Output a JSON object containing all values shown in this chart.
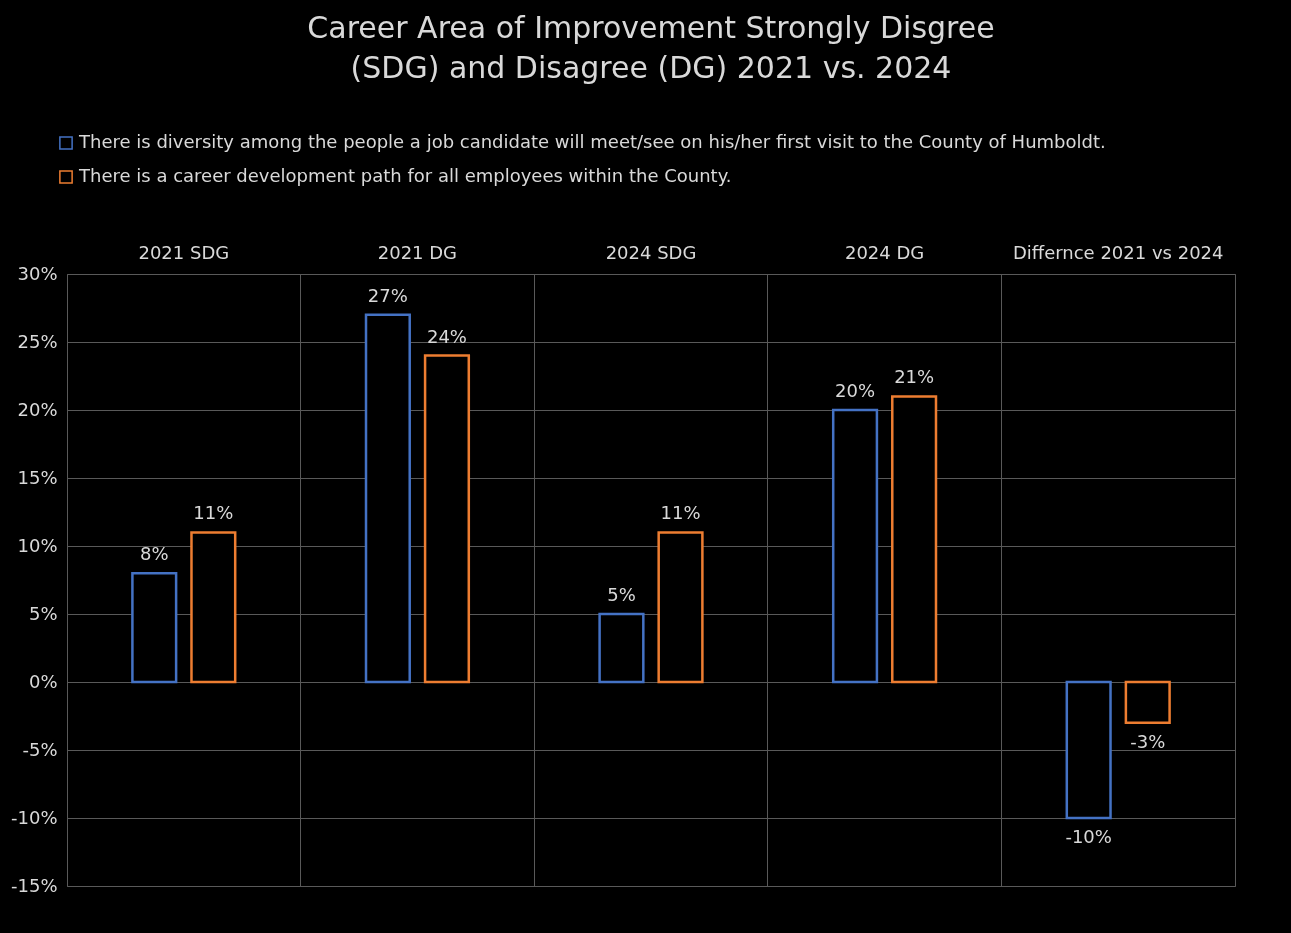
{
  "chart_data": {
    "type": "bar",
    "title": "Career  Area of Improvement  Strongly Disgree (SDG) and Disagree (DG) 2021 vs. 2024",
    "categories": [
      "2021 SDG",
      "2021 DG",
      "2024 SDG",
      "2024 DG",
      "Differnce 2021 vs 2024"
    ],
    "series": [
      {
        "name": "There is diversity among the people a job candidate will meet/see on his/her first visit to the County of Humboldt.",
        "color": "#4472c4",
        "values": [
          8,
          27,
          5,
          20,
          -10
        ],
        "value_labels": [
          "8%",
          "27%",
          "5%",
          "20%",
          "-10%"
        ]
      },
      {
        "name": "There is a career development path for all employees within the County.",
        "color": "#ed7d31",
        "values": [
          11,
          24,
          11,
          21,
          -3
        ],
        "value_labels": [
          "11%",
          "24%",
          "11%",
          "21%",
          "-3%"
        ]
      }
    ],
    "ylim": [
      -15,
      30
    ],
    "yticks": [
      {
        "value": -15,
        "label": "-15%"
      },
      {
        "value": -10,
        "label": "-10%"
      },
      {
        "value": -5,
        "label": "-5%"
      },
      {
        "value": 0,
        "label": "0%"
      },
      {
        "value": 5,
        "label": "5%"
      },
      {
        "value": 10,
        "label": "10%"
      },
      {
        "value": 15,
        "label": "15%"
      },
      {
        "value": 20,
        "label": "20%"
      },
      {
        "value": 25,
        "label": "25%"
      },
      {
        "value": 30,
        "label": "30%"
      }
    ],
    "grid": true,
    "legend": "top left"
  }
}
